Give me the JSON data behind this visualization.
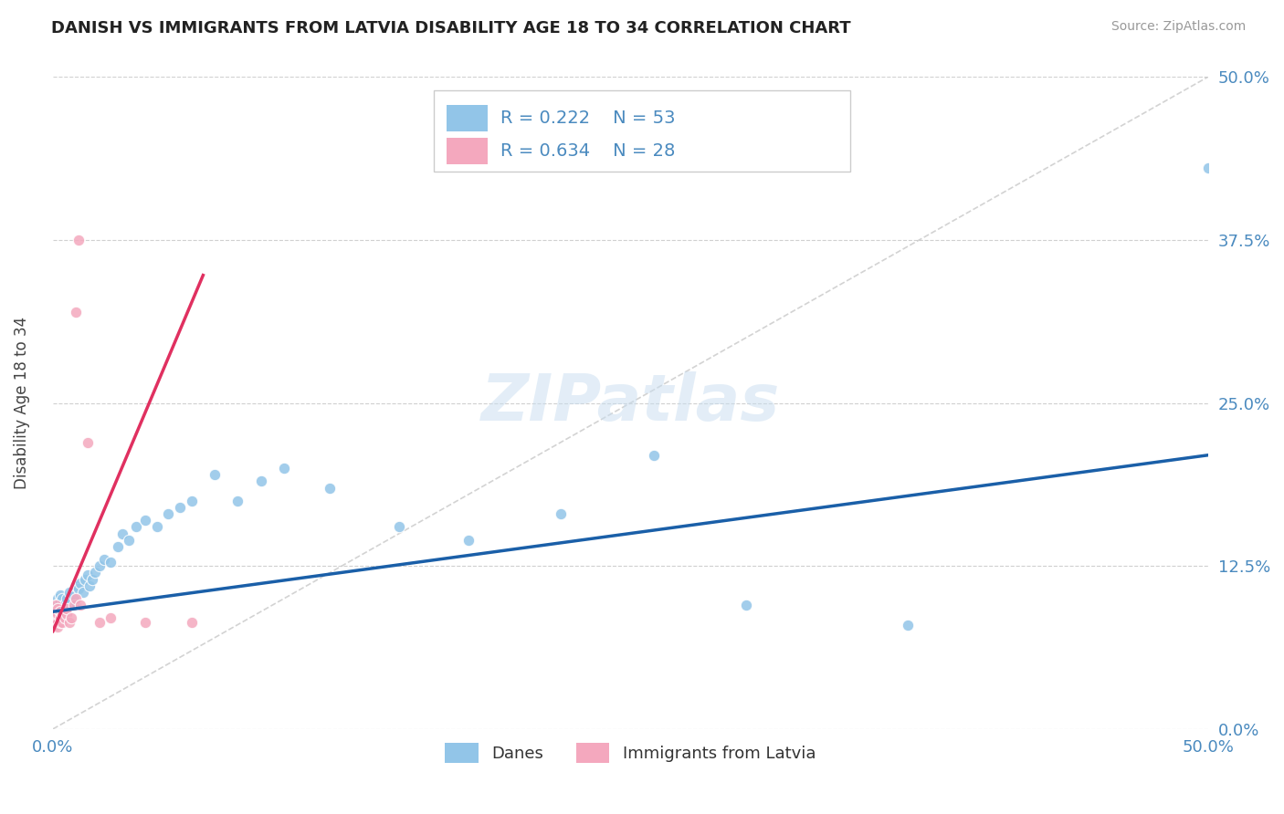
{
  "title": "DANISH VS IMMIGRANTS FROM LATVIA DISABILITY AGE 18 TO 34 CORRELATION CHART",
  "source": "Source: ZipAtlas.com",
  "ylabel": "Disability Age 18 to 34",
  "xlim": [
    0.0,
    0.5
  ],
  "ylim": [
    0.0,
    0.5
  ],
  "ytick_positions": [
    0.0,
    0.125,
    0.25,
    0.375,
    0.5
  ],
  "ytick_labels": [
    "0.0%",
    "12.5%",
    "25.0%",
    "37.5%",
    "50.0%"
  ],
  "xtick_positions": [
    0.0,
    0.5
  ],
  "xtick_labels": [
    "0.0%",
    "50.0%"
  ],
  "grid_color": "#d0d0d0",
  "bg_color": "#ffffff",
  "danes_dot_color": "#92c5e8",
  "imm_dot_color": "#f4a8be",
  "danes_line_color": "#1a5fa8",
  "imm_line_color": "#e03060",
  "diag_color": "#c8c8c8",
  "tick_color": "#4a8abf",
  "title_color": "#222222",
  "source_color": "#999999",
  "R_danes": "0.222",
  "N_danes": "53",
  "R_imm": "0.634",
  "N_imm": "28",
  "watermark": "ZIPatlas",
  "danes_x": [
    0.001,
    0.001,
    0.002,
    0.002,
    0.002,
    0.003,
    0.003,
    0.003,
    0.004,
    0.004,
    0.004,
    0.005,
    0.005,
    0.006,
    0.006,
    0.007,
    0.007,
    0.008,
    0.009,
    0.01,
    0.01,
    0.011,
    0.012,
    0.013,
    0.014,
    0.015,
    0.016,
    0.017,
    0.018,
    0.02,
    0.022,
    0.025,
    0.028,
    0.03,
    0.033,
    0.036,
    0.04,
    0.045,
    0.05,
    0.055,
    0.06,
    0.07,
    0.08,
    0.09,
    0.1,
    0.12,
    0.15,
    0.18,
    0.22,
    0.26,
    0.3,
    0.37,
    0.5
  ],
  "danes_y": [
    0.085,
    0.09,
    0.1,
    0.095,
    0.088,
    0.092,
    0.098,
    0.103,
    0.095,
    0.088,
    0.1,
    0.092,
    0.096,
    0.1,
    0.088,
    0.095,
    0.105,
    0.098,
    0.102,
    0.11,
    0.095,
    0.108,
    0.112,
    0.105,
    0.115,
    0.118,
    0.11,
    0.115,
    0.12,
    0.125,
    0.13,
    0.128,
    0.14,
    0.15,
    0.145,
    0.155,
    0.16,
    0.155,
    0.165,
    0.17,
    0.175,
    0.195,
    0.175,
    0.19,
    0.2,
    0.185,
    0.155,
    0.145,
    0.165,
    0.21,
    0.095,
    0.08,
    0.43
  ],
  "imm_x": [
    0.001,
    0.001,
    0.001,
    0.002,
    0.002,
    0.002,
    0.002,
    0.003,
    0.003,
    0.003,
    0.004,
    0.004,
    0.005,
    0.005,
    0.006,
    0.006,
    0.007,
    0.008,
    0.009,
    0.01,
    0.01,
    0.011,
    0.012,
    0.015,
    0.02,
    0.025,
    0.04,
    0.06
  ],
  "imm_y": [
    0.08,
    0.085,
    0.095,
    0.082,
    0.088,
    0.092,
    0.078,
    0.09,
    0.082,
    0.085,
    0.088,
    0.082,
    0.09,
    0.085,
    0.088,
    0.092,
    0.082,
    0.085,
    0.095,
    0.32,
    0.1,
    0.375,
    0.095,
    0.22,
    0.082,
    0.085,
    0.082,
    0.082
  ]
}
